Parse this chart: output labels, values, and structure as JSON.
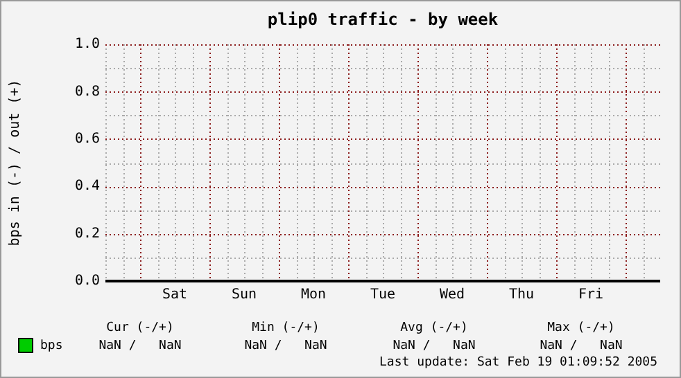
{
  "chart_data": {
    "type": "line",
    "title": "plip0 traffic - by week",
    "ylabel": "bps in (-) / out (+)",
    "categories": [
      null,
      "Sat",
      "Sun",
      "Mon",
      "Tue",
      "Wed",
      "Thu",
      "Fri",
      null
    ],
    "series": [
      {
        "name": "bps",
        "color": "#00cc00",
        "values": [
          null,
          null,
          null,
          null,
          null,
          null,
          null,
          null,
          null
        ]
      }
    ],
    "ylim": [
      0,
      1
    ],
    "yticks": [
      {
        "value": 0,
        "label": "0.0"
      },
      0.2,
      0.4,
      0.6,
      0.8,
      {
        "value": 1,
        "label": "1.0"
      }
    ],
    "grid": true,
    "legend": "bottom left",
    "annotations": [
      "Cur (-/+)",
      "Min (-/+)",
      "Avg (-/+)",
      "Max (-/+)",
      "NaN /   NaN",
      "NaN /   NaN",
      "NaN /   NaN",
      "NaN /   NaN",
      "Last update: Sat Feb 19 01:09:52 2005"
    ]
  }
}
